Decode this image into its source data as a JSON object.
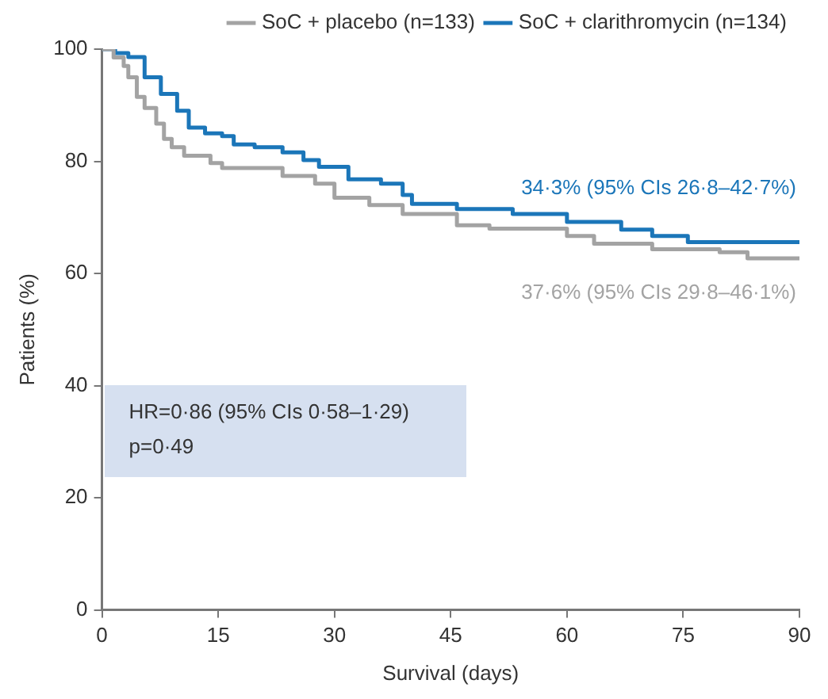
{
  "chart_data": {
    "type": "step",
    "xlabel": "Survival (days)",
    "ylabel": "Patients (%)",
    "xlim": [
      0,
      90
    ],
    "xticks": [
      0,
      15,
      30,
      45,
      60,
      75,
      90
    ],
    "ylim": [
      0,
      100
    ],
    "yticks": [
      0,
      20,
      40,
      60,
      80,
      100
    ],
    "grid": false,
    "legend": "top",
    "marker": "none",
    "line_style": "solid",
    "series": [
      {
        "name": "SoC + placebo (n=133)",
        "color": "#a3a3a3",
        "x": [
          0,
          1.5,
          2.8,
          3.4,
          4.5,
          5.5,
          7,
          8,
          9,
          10.6,
          14,
          15.5,
          23.3,
          27.5,
          30,
          34.5,
          38.8,
          45.8,
          50,
          60,
          63.5,
          71,
          79.7,
          83.3,
          90
        ],
        "values": [
          100,
          98.5,
          97,
          95,
          91.5,
          89.5,
          86.7,
          84,
          82.5,
          81,
          79.7,
          78.8,
          77.4,
          76,
          73.5,
          72.2,
          70.6,
          68.6,
          68,
          66.7,
          65.3,
          64.3,
          63.8,
          62.7,
          62.7
        ]
      },
      {
        "name": "SoC + clarithromycin (n=134)",
        "color": "#1b76b9",
        "x": [
          0,
          1.7,
          3.4,
          5.5,
          7.6,
          9.7,
          11.2,
          13.3,
          15.5,
          17,
          19.7,
          23.3,
          26,
          28,
          31.8,
          36,
          38.8,
          40,
          45.8,
          53,
          60,
          67,
          71,
          75.6,
          90
        ],
        "values": [
          100,
          99.3,
          98.6,
          95,
          92,
          89,
          86,
          85,
          84.5,
          83,
          82.5,
          81.6,
          80.2,
          79,
          76.8,
          76,
          74,
          72.4,
          71.5,
          70.6,
          69.2,
          67.8,
          66.7,
          65.6,
          65.6
        ]
      }
    ],
    "annotations": [
      "37·6% (95% CIs 29·8–46·1%)",
      "34·3% (95% CIs 26·8–42·7%)",
      "HR=0·86 (95% CIs 0·58–1·29)\np=0·49"
    ]
  }
}
